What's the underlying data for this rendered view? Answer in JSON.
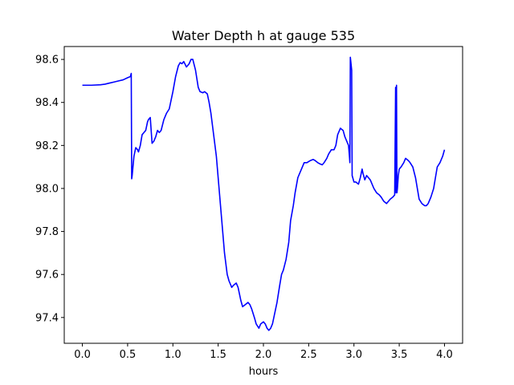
{
  "chart_data": {
    "type": "line",
    "title": "Water Depth h at gauge 535",
    "xlabel": "hours",
    "ylabel": "",
    "xlim": [
      -0.2,
      4.2
    ],
    "ylim": [
      97.28,
      98.66
    ],
    "xticks": [
      0.0,
      0.5,
      1.0,
      1.5,
      2.0,
      2.5,
      3.0,
      3.5,
      4.0
    ],
    "xtick_labels": [
      "0.0",
      "0.5",
      "1.0",
      "1.5",
      "2.0",
      "2.5",
      "3.0",
      "3.5",
      "4.0"
    ],
    "yticks": [
      97.4,
      97.6,
      97.8,
      98.0,
      98.2,
      98.4,
      98.6
    ],
    "ytick_labels": [
      "97.4",
      "97.6",
      "97.8",
      "98.0",
      "98.2",
      "98.4",
      "98.6"
    ],
    "grid": false,
    "legend": "none",
    "series": [
      {
        "color": "#0000ff",
        "x": [
          0.0,
          0.1,
          0.2,
          0.25,
          0.3,
          0.35,
          0.4,
          0.45,
          0.5,
          0.53,
          0.54,
          0.545,
          0.55,
          0.57,
          0.59,
          0.61,
          0.62,
          0.64,
          0.66,
          0.68,
          0.7,
          0.72,
          0.73,
          0.75,
          0.77,
          0.79,
          0.81,
          0.83,
          0.85,
          0.87,
          0.9,
          0.93,
          0.96,
          1.0,
          1.03,
          1.06,
          1.08,
          1.1,
          1.12,
          1.15,
          1.18,
          1.2,
          1.22,
          1.25,
          1.28,
          1.3,
          1.33,
          1.35,
          1.38,
          1.4,
          1.42,
          1.45,
          1.48,
          1.5,
          1.52,
          1.55,
          1.57,
          1.6,
          1.62,
          1.65,
          1.67,
          1.7,
          1.72,
          1.75,
          1.77,
          1.8,
          1.83,
          1.85,
          1.87,
          1.9,
          1.92,
          1.95,
          1.97,
          2.0,
          2.02,
          2.04,
          2.06,
          2.08,
          2.1,
          2.12,
          2.15,
          2.18,
          2.2,
          2.22,
          2.25,
          2.28,
          2.3,
          2.33,
          2.35,
          2.38,
          2.4,
          2.43,
          2.45,
          2.48,
          2.5,
          2.52,
          2.55,
          2.57,
          2.6,
          2.62,
          2.65,
          2.67,
          2.7,
          2.72,
          2.75,
          2.78,
          2.8,
          2.82,
          2.85,
          2.88,
          2.9,
          2.92,
          2.94,
          2.95,
          2.955,
          2.96,
          2.965,
          2.97,
          2.975,
          2.98,
          3.0,
          3.02,
          3.05,
          3.07,
          3.09,
          3.1,
          3.12,
          3.14,
          3.16,
          3.18,
          3.2,
          3.22,
          3.25,
          3.28,
          3.3,
          3.33,
          3.36,
          3.4,
          3.43,
          3.45,
          3.46,
          3.465,
          3.47,
          3.475,
          3.48,
          3.485,
          3.49,
          3.5,
          3.52,
          3.55,
          3.57,
          3.6,
          3.62,
          3.65,
          3.68,
          3.7,
          3.72,
          3.75,
          3.78,
          3.8,
          3.82,
          3.85,
          3.88,
          3.9,
          3.92,
          3.95,
          3.98,
          4.0
        ],
        "y": [
          98.48,
          98.48,
          98.482,
          98.485,
          98.49,
          98.495,
          98.5,
          98.505,
          98.515,
          98.52,
          98.535,
          98.045,
          98.06,
          98.15,
          98.19,
          98.18,
          98.17,
          98.2,
          98.25,
          98.26,
          98.27,
          98.31,
          98.32,
          98.33,
          98.21,
          98.22,
          98.24,
          98.27,
          98.26,
          98.27,
          98.32,
          98.35,
          98.37,
          98.45,
          98.52,
          98.57,
          98.585,
          98.58,
          98.59,
          98.565,
          98.58,
          98.6,
          98.6,
          98.55,
          98.47,
          98.45,
          98.445,
          98.45,
          98.44,
          98.4,
          98.35,
          98.25,
          98.15,
          98.05,
          97.95,
          97.8,
          97.7,
          97.6,
          97.57,
          97.54,
          97.55,
          97.56,
          97.54,
          97.48,
          97.45,
          97.46,
          97.47,
          97.46,
          97.44,
          97.4,
          97.37,
          97.35,
          97.37,
          97.38,
          97.37,
          97.35,
          97.34,
          97.35,
          97.37,
          97.41,
          97.47,
          97.55,
          97.6,
          97.62,
          97.67,
          97.75,
          97.85,
          97.92,
          97.98,
          98.05,
          98.07,
          98.1,
          98.12,
          98.12,
          98.125,
          98.13,
          98.135,
          98.13,
          98.12,
          98.115,
          98.11,
          98.12,
          98.14,
          98.16,
          98.18,
          98.18,
          98.2,
          98.25,
          98.28,
          98.27,
          98.24,
          98.22,
          98.2,
          98.15,
          98.12,
          98.61,
          98.59,
          98.57,
          98.55,
          98.06,
          98.03,
          98.03,
          98.02,
          98.05,
          98.09,
          98.07,
          98.04,
          98.06,
          98.05,
          98.04,
          98.02,
          98.0,
          97.98,
          97.97,
          97.96,
          97.94,
          97.93,
          97.95,
          97.96,
          97.97,
          98.47,
          97.98,
          98.48,
          97.98,
          98.0,
          98.03,
          98.06,
          98.09,
          98.1,
          98.12,
          98.14,
          98.13,
          98.12,
          98.1,
          98.05,
          98.0,
          97.95,
          97.93,
          97.92,
          97.92,
          97.93,
          97.96,
          98.0,
          98.05,
          98.1,
          98.12,
          98.15,
          98.18
        ]
      }
    ]
  }
}
